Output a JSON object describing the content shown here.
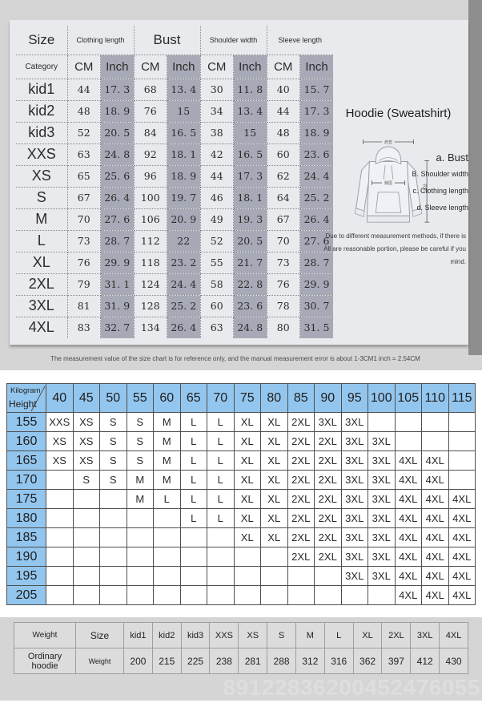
{
  "size_chart": {
    "group_headers": [
      {
        "label": "Size",
        "span": 1
      },
      {
        "label": "Clothing length",
        "span": 2
      },
      {
        "label": "Bust",
        "span": 2
      },
      {
        "label": "Shoulder width",
        "span": 2
      },
      {
        "label": "Sleeve length",
        "span": 2
      }
    ],
    "unit_header": [
      "Category",
      "CM",
      "Inch",
      "CM",
      "Inch",
      "CM",
      "Inch",
      "CM",
      "Inch"
    ],
    "rows": [
      {
        "size": "kid1",
        "values": [
          "44",
          "17. 3",
          "68",
          "13. 4",
          "30",
          "11. 8",
          "40",
          "15. 7"
        ]
      },
      {
        "size": "kid2",
        "values": [
          "48",
          "18. 9",
          "76",
          "15",
          "34",
          "13. 4",
          "44",
          "17. 3"
        ]
      },
      {
        "size": "kid3",
        "values": [
          "52",
          "20. 5",
          "84",
          "16. 5",
          "38",
          "15",
          "48",
          "18. 9"
        ]
      },
      {
        "size": "XXS",
        "values": [
          "63",
          "24. 8",
          "92",
          "18. 1",
          "42",
          "16. 5",
          "60",
          "23. 6"
        ]
      },
      {
        "size": "XS",
        "values": [
          "65",
          "25. 6",
          "96",
          "18. 9",
          "44",
          "17. 3",
          "62",
          "24. 4"
        ]
      },
      {
        "size": "S",
        "values": [
          "67",
          "26. 4",
          "100",
          "19. 7",
          "46",
          "18. 1",
          "64",
          "25. 2"
        ]
      },
      {
        "size": "M",
        "values": [
          "70",
          "27. 6",
          "106",
          "20. 9",
          "49",
          "19. 3",
          "67",
          "26. 4"
        ]
      },
      {
        "size": "L",
        "values": [
          "73",
          "28. 7",
          "112",
          "22",
          "52",
          "20. 5",
          "70",
          "27. 6"
        ]
      },
      {
        "size": "XL",
        "values": [
          "76",
          "29. 9",
          "118",
          "23. 2",
          "55",
          "21. 7",
          "73",
          "28. 7"
        ]
      },
      {
        "size": "2XL",
        "values": [
          "79",
          "31. 1",
          "124",
          "24. 4",
          "58",
          "22. 8",
          "76",
          "29. 9"
        ]
      },
      {
        "size": "3XL",
        "values": [
          "81",
          "31. 9",
          "128",
          "25. 2",
          "60",
          "23. 6",
          "78",
          "30. 7"
        ]
      },
      {
        "size": "4XL",
        "values": [
          "83",
          "32. 7",
          "134",
          "26. 4",
          "63",
          "24. 8",
          "80",
          "31. 5"
        ]
      }
    ]
  },
  "product": {
    "title": "Hoodie (Sweatshirt)",
    "diagram_labels": {
      "shoulder": "肩宽",
      "bust": "胸围",
      "length": "衣长"
    },
    "measure_legend": [
      "a. Bust",
      "B. Shoulder width",
      "c. Clothing length",
      "d. Sleeve length"
    ],
    "note_line1": "Due to different measurement methods, if there is",
    "note_line2": "All are reasonable portion, please be careful if you mind."
  },
  "footnote": "The measurement value of the size chart is for reference only, and the manual measurement error is about 1-3CM1 inch = 2.54CM",
  "size_matrix": {
    "corner_top": "Kilogram",
    "corner_bottom": "Height",
    "weights": [
      "40",
      "45",
      "50",
      "55",
      "60",
      "65",
      "70",
      "75",
      "80",
      "85",
      "90",
      "95",
      "100",
      "105",
      "110",
      "115"
    ],
    "rows": [
      {
        "height": "155",
        "cells": [
          "XXS",
          "XS",
          "S",
          "S",
          "M",
          "L",
          "L",
          "XL",
          "XL",
          "2XL",
          "3XL",
          "3XL",
          "",
          "",
          "",
          ""
        ]
      },
      {
        "height": "160",
        "cells": [
          "XS",
          "XS",
          "S",
          "S",
          "M",
          "L",
          "L",
          "XL",
          "XL",
          "2XL",
          "2XL",
          "3XL",
          "3XL",
          "",
          "",
          ""
        ]
      },
      {
        "height": "165",
        "cells": [
          "XS",
          "XS",
          "S",
          "S",
          "M",
          "L",
          "L",
          "XL",
          "XL",
          "2XL",
          "2XL",
          "3XL",
          "3XL",
          "4XL",
          "4XL",
          ""
        ]
      },
      {
        "height": "170",
        "cells": [
          "",
          "S",
          "S",
          "M",
          "M",
          "L",
          "L",
          "XL",
          "XL",
          "2XL",
          "2XL",
          "3XL",
          "3XL",
          "4XL",
          "4XL",
          ""
        ]
      },
      {
        "height": "175",
        "cells": [
          "",
          "",
          "",
          "M",
          "L",
          "L",
          "L",
          "XL",
          "XL",
          "2XL",
          "2XL",
          "3XL",
          "3XL",
          "4XL",
          "4XL",
          "4XL"
        ]
      },
      {
        "height": "180",
        "cells": [
          "",
          "",
          "",
          "",
          "",
          "L",
          "L",
          "XL",
          "XL",
          "2XL",
          "2XL",
          "3XL",
          "3XL",
          "4XL",
          "4XL",
          "4XL"
        ]
      },
      {
        "height": "185",
        "cells": [
          "",
          "",
          "",
          "",
          "",
          "",
          "",
          "XL",
          "XL",
          "2XL",
          "2XL",
          "3XL",
          "3XL",
          "4XL",
          "4XL",
          "4XL"
        ]
      },
      {
        "height": "190",
        "cells": [
          "",
          "",
          "",
          "",
          "",
          "",
          "",
          "",
          "",
          "2XL",
          "2XL",
          "3XL",
          "3XL",
          "4XL",
          "4XL",
          "4XL"
        ]
      },
      {
        "height": "195",
        "cells": [
          "",
          "",
          "",
          "",
          "",
          "",
          "",
          "",
          "",
          "",
          "",
          "3XL",
          "3XL",
          "4XL",
          "4XL",
          "4XL"
        ]
      },
      {
        "height": "205",
        "cells": [
          "",
          "",
          "",
          "",
          "",
          "",
          "",
          "",
          "",
          "",
          "",
          "",
          "",
          "4XL",
          "4XL",
          "4XL"
        ]
      }
    ]
  },
  "weight_table": {
    "header": [
      "Weight",
      "Size",
      "kid1",
      "kid2",
      "kid3",
      "XXS",
      "XS",
      "S",
      "M",
      "L",
      "XL",
      "2XL",
      "3XL",
      "4XL"
    ],
    "row": [
      "Ordinary hoodie",
      "Weight",
      "200",
      "215",
      "225",
      "238",
      "281",
      "288",
      "312",
      "316",
      "362",
      "397",
      "412",
      "430"
    ]
  },
  "watermark": "89122836200452476055",
  "colors": {
    "panel_bg": "#e9eaee",
    "inch_band": "#a7aab6",
    "matrix_blue": "#93c6ee",
    "page_gray": "#d5d5d5",
    "strip_gray": "#8e8e8e"
  }
}
